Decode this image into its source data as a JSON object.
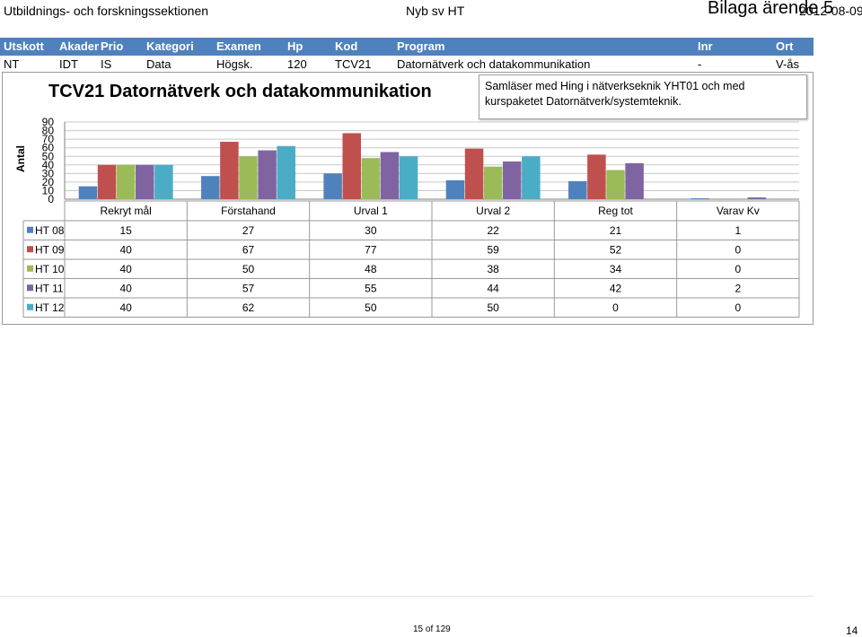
{
  "header": {
    "left": "Utbildnings- och forskningssektionen",
    "center": "Nyb sv HT",
    "bilaga": "Bilaga ärende 5",
    "date": "2012-08-09"
  },
  "columns": [
    "Utskott",
    "Akadem",
    "Prio",
    "Kategori",
    "Examen",
    "Hp",
    "Kod",
    "Program",
    "Inr",
    "Ort"
  ],
  "row": [
    "NT",
    "IDT",
    "IS",
    "Data",
    "Högsk.",
    "120",
    "TCV21",
    "Datornätverk och datakommunikation",
    "-",
    "V-ås"
  ],
  "note": "Samläser med Hing i nätverkseknik YHT01 och med kurspaketet Datornätverk/systemteknik.",
  "footer": {
    "page_of": "15 of 129",
    "page": "14"
  },
  "colors": {
    "header_bar": "#4f81bd",
    "text_white": "#ffffff"
  },
  "chart_data": {
    "type": "bar",
    "title": "TCV21 Datornätverk och datakommunikation",
    "ylabel": "Antal",
    "ylim": [
      0,
      90
    ],
    "yticks": [
      0,
      10,
      20,
      30,
      40,
      50,
      60,
      70,
      80,
      90
    ],
    "grid": true,
    "categories": [
      "Rekryt mål",
      "Förstahand",
      "Urval 1",
      "Urval 2",
      "Reg tot",
      "Varav Kv"
    ],
    "series": [
      {
        "name": "HT 08",
        "color": "#4f81bd",
        "values": [
          15,
          27,
          30,
          22,
          21,
          1
        ]
      },
      {
        "name": "HT 09",
        "color": "#c0504d",
        "values": [
          40,
          67,
          77,
          59,
          52,
          0
        ]
      },
      {
        "name": "HT 10",
        "color": "#9bbb59",
        "values": [
          40,
          50,
          48,
          38,
          34,
          0
        ]
      },
      {
        "name": "HT 11",
        "color": "#8064a2",
        "values": [
          40,
          57,
          55,
          44,
          42,
          2
        ]
      },
      {
        "name": "HT 12",
        "color": "#4bacc6",
        "values": [
          40,
          62,
          50,
          50,
          0,
          0
        ]
      }
    ]
  }
}
